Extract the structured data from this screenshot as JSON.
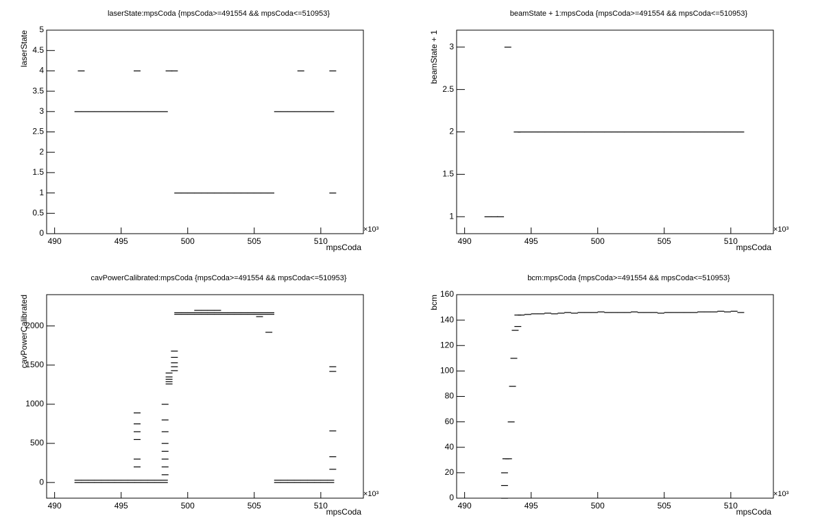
{
  "chart_data": [
    {
      "type": "scatter",
      "title": "laserState:mpsCoda {mpsCoda>=491554 && mpsCoda<=510953}",
      "xlabel": "mpsCoda",
      "ylabel": "laserState",
      "x_multiplier": "×10³",
      "color": "#000000",
      "xlim": [
        489.4,
        513.2
      ],
      "xticks": [
        490,
        495,
        500,
        505,
        510
      ],
      "ylim": [
        0,
        5
      ],
      "yticks": [
        0,
        0.5,
        1,
        1.5,
        2,
        2.5,
        3,
        3.5,
        4,
        4.5,
        5
      ],
      "x": [
        491.75,
        492.25,
        492.75,
        493.25,
        493.75,
        494.25,
        494.75,
        495.25,
        495.75,
        496.25,
        496.75,
        497.25,
        497.75,
        498.25,
        492.0,
        496.2,
        498.6,
        499.0,
        508.5,
        510.9,
        499.25,
        499.75,
        500.25,
        500.75,
        501.25,
        501.75,
        502.25,
        502.75,
        503.25,
        503.75,
        504.25,
        504.75,
        505.25,
        505.75,
        506.25,
        510.9,
        506.75,
        507.25,
        507.75,
        508.25,
        508.75,
        509.25,
        509.75,
        510.25,
        510.75
      ],
      "values": [
        3,
        3,
        3,
        3,
        3,
        3,
        3,
        3,
        3,
        3,
        3,
        3,
        3,
        3,
        4,
        4,
        4,
        4,
        4,
        4,
        1,
        1,
        1,
        1,
        1,
        1,
        1,
        1,
        1,
        1,
        1,
        1,
        1,
        1,
        1,
        1,
        3,
        3,
        3,
        3,
        3,
        3,
        3,
        3,
        3
      ]
    },
    {
      "type": "scatter",
      "title": "beamState + 1:mpsCoda {mpsCoda>=491554 && mpsCoda<=510953}",
      "xlabel": "mpsCoda",
      "ylabel": "beamState + 1",
      "x_multiplier": "×10³",
      "color": "#000000",
      "xlim": [
        489.4,
        513.2
      ],
      "xticks": [
        490,
        495,
        500,
        505,
        510
      ],
      "ylim": [
        0.8,
        3.2
      ],
      "yticks": [
        1,
        1.5,
        2,
        2.5,
        3
      ],
      "x": [
        491.75,
        492.25,
        492.7,
        493.25,
        493.95,
        494.25,
        494.75,
        495.25,
        495.75,
        496.25,
        496.75,
        497.25,
        497.75,
        498.25,
        498.75,
        499.25,
        499.75,
        500.25,
        500.75,
        501.25,
        501.75,
        502.25,
        502.75,
        503.25,
        503.75,
        504.25,
        504.75,
        505.25,
        505.75,
        506.25,
        506.75,
        507.25,
        507.75,
        508.25,
        508.75,
        509.25,
        509.75,
        510.25,
        510.75
      ],
      "values": [
        1,
        1,
        1,
        3,
        2,
        2,
        2,
        2,
        2,
        2,
        2,
        2,
        2,
        2,
        2,
        2,
        2,
        2,
        2,
        2,
        2,
        2,
        2,
        2,
        2,
        2,
        2,
        2,
        2,
        2,
        2,
        2,
        2,
        2,
        2,
        2,
        2,
        2,
        2
      ]
    },
    {
      "type": "scatter",
      "title": "cavPowerCalibrated:mpsCoda {mpsCoda>=491554 && mpsCoda<=510953}",
      "xlabel": "mpsCoda",
      "ylabel": "cavPowerCalibrated",
      "x_multiplier": "×10³",
      "color": "#000000",
      "xlim": [
        489.4,
        513.2
      ],
      "xticks": [
        490,
        495,
        500,
        505,
        510
      ],
      "ylim": [
        -200,
        2400
      ],
      "yticks": [
        0,
        500,
        1000,
        1500,
        2000
      ],
      "x": [
        491.75,
        492.25,
        492.75,
        493.25,
        493.75,
        494.25,
        494.75,
        495.25,
        495.75,
        496.25,
        496.75,
        497.25,
        497.75,
        498.25,
        491.75,
        492.25,
        492.75,
        493.25,
        493.75,
        494.25,
        494.75,
        495.25,
        495.75,
        496.25,
        496.75,
        497.25,
        497.75,
        498.25,
        506.75,
        507.25,
        507.75,
        508.25,
        508.75,
        509.25,
        509.75,
        510.25,
        510.75,
        506.75,
        507.25,
        507.75,
        508.25,
        508.75,
        509.25,
        509.75,
        510.25,
        510.75,
        499.25,
        499.75,
        500.25,
        500.75,
        501.25,
        501.75,
        502.25,
        502.75,
        503.25,
        503.75,
        504.25,
        504.75,
        505.25,
        505.75,
        506.25,
        499.25,
        499.75,
        500.25,
        500.75,
        501.25,
        501.75,
        502.25,
        502.75,
        503.25,
        503.75,
        504.25,
        504.75,
        505.25,
        505.75,
        506.25,
        500.75,
        501.25,
        501.75,
        502.25,
        496.2,
        496.2,
        496.2,
        496.2,
        496.2,
        496.2,
        498.3,
        498.3,
        498.3,
        498.3,
        498.3,
        498.3,
        498.3,
        498.3,
        498.6,
        498.6,
        498.6,
        498.6,
        498.6,
        499.0,
        499.0,
        499.0,
        499.0,
        499.0,
        510.9,
        510.9,
        510.9,
        510.9,
        510.9,
        506.1,
        505.4
      ],
      "values": [
        0,
        0,
        0,
        0,
        0,
        0,
        0,
        0,
        0,
        0,
        0,
        0,
        0,
        0,
        30,
        30,
        30,
        30,
        30,
        30,
        30,
        30,
        30,
        30,
        30,
        30,
        30,
        30,
        0,
        0,
        0,
        0,
        0,
        0,
        0,
        0,
        0,
        30,
        30,
        30,
        30,
        30,
        30,
        30,
        30,
        30,
        2150,
        2150,
        2150,
        2150,
        2150,
        2150,
        2150,
        2150,
        2150,
        2150,
        2150,
        2150,
        2150,
        2150,
        2150,
        2170,
        2170,
        2170,
        2170,
        2170,
        2170,
        2170,
        2170,
        2170,
        2170,
        2170,
        2170,
        2170,
        2170,
        2170,
        2200,
        2200,
        2200,
        2200,
        200,
        300,
        550,
        650,
        750,
        890,
        100,
        200,
        300,
        400,
        500,
        650,
        800,
        1000,
        1260,
        1290,
        1320,
        1350,
        1400,
        1430,
        1480,
        1530,
        1600,
        1680,
        170,
        330,
        660,
        1420,
        1480,
        1920,
        2120
      ]
    },
    {
      "type": "scatter",
      "title": "bcm:mpsCoda {mpsCoda>=491554 && mpsCoda<=510953}",
      "xlabel": "mpsCoda",
      "ylabel": "bcm",
      "x_multiplier": "×10³",
      "color": "#000000",
      "xlim": [
        489.4,
        513.2
      ],
      "xticks": [
        490,
        495,
        500,
        505,
        510
      ],
      "ylim": [
        0,
        160
      ],
      "yticks": [
        0,
        20,
        40,
        60,
        80,
        100,
        120,
        140,
        160
      ],
      "x": [
        493.0,
        493.0,
        493.0,
        493.1,
        493.3,
        493.5,
        493.6,
        493.7,
        493.8,
        494.0,
        494.0,
        494.25,
        494.75,
        495.25,
        495.75,
        496.25,
        496.75,
        497.25,
        497.75,
        498.25,
        498.75,
        499.25,
        499.75,
        500.25,
        500.75,
        501.25,
        501.75,
        502.25,
        502.75,
        503.25,
        503.75,
        504.25,
        504.75,
        505.25,
        505.75,
        506.25,
        506.75,
        507.25,
        507.75,
        508.25,
        508.75,
        509.25,
        509.75,
        510.25,
        510.75
      ],
      "values": [
        0,
        10,
        20,
        31,
        31,
        60,
        88,
        110,
        132,
        135,
        144,
        144,
        144.5,
        145,
        145,
        145.5,
        145,
        145.5,
        146,
        145.5,
        146,
        146,
        146,
        146.5,
        146,
        146,
        146,
        146,
        146.5,
        146,
        146,
        146,
        145.5,
        146,
        146,
        146,
        146,
        146,
        146.5,
        146.5,
        146.5,
        147,
        146.5,
        147,
        146
      ]
    }
  ]
}
